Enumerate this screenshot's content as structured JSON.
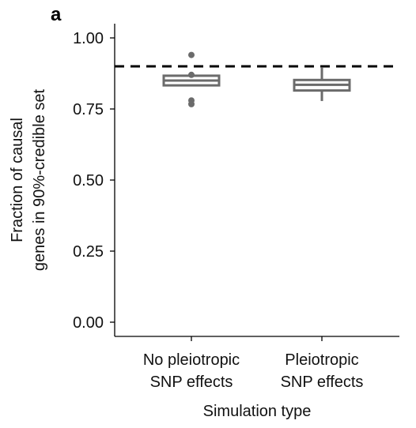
{
  "chart_data": {
    "type": "box",
    "panel_label": "a",
    "xlabel": "Simulation type",
    "ylabel_lines": [
      "Fraction of causal",
      "genes in 90%-credible set"
    ],
    "ylim": [
      0.0,
      1.05
    ],
    "yticks": [
      {
        "value": 0.0,
        "label": "0.00"
      },
      {
        "value": 0.25,
        "label": "0.25"
      },
      {
        "value": 0.5,
        "label": "0.50"
      },
      {
        "value": 0.75,
        "label": "0.75"
      },
      {
        "value": 1.0,
        "label": "1.00"
      }
    ],
    "reference_line": {
      "value": 0.9,
      "style": "dashed",
      "color": "#000000"
    },
    "box_color": "#6b6b6b",
    "categories": [
      {
        "label_lines": [
          "No pleiotropic",
          "SNP effects"
        ],
        "q1": 0.833,
        "median": 0.85,
        "q3": 0.867,
        "whisker_low": 0.833,
        "whisker_high": 0.867,
        "outliers": [
          0.94,
          0.87,
          0.78,
          0.767
        ]
      },
      {
        "label_lines": [
          "Pleiotropic",
          "SNP effects"
        ],
        "q1": 0.815,
        "median": 0.835,
        "q3": 0.852,
        "whisker_low": 0.778,
        "whisker_high": 0.895,
        "outliers": []
      }
    ]
  }
}
